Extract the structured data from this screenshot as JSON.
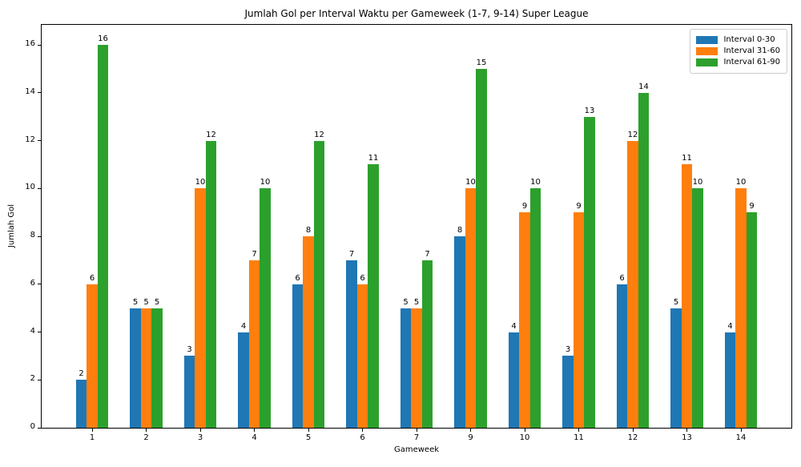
{
  "chart_data": {
    "type": "bar",
    "title": "Jumlah Gol per Interval Waktu per Gameweek (1-7, 9-14) Super League",
    "xlabel": "Gameweek",
    "ylabel": "Jumlah Gol",
    "categories": [
      "1",
      "2",
      "3",
      "4",
      "5",
      "6",
      "7",
      "9",
      "10",
      "11",
      "12",
      "13",
      "14"
    ],
    "series": [
      {
        "name": "Interval 0-30",
        "color": "#1f77b4",
        "values": [
          2,
          5,
          3,
          4,
          6,
          7,
          5,
          8,
          4,
          3,
          6,
          5,
          4
        ]
      },
      {
        "name": "Interval 31-60",
        "color": "#ff7f0e",
        "values": [
          6,
          5,
          10,
          7,
          8,
          6,
          5,
          10,
          9,
          9,
          12,
          11,
          10
        ]
      },
      {
        "name": "Interval 61-90",
        "color": "#2ca02c",
        "values": [
          16,
          5,
          12,
          10,
          12,
          11,
          7,
          15,
          10,
          13,
          14,
          10,
          9
        ]
      }
    ],
    "yticks": [
      0,
      2,
      4,
      6,
      8,
      10,
      12,
      14,
      16
    ],
    "ylim": [
      0,
      16.84
    ],
    "grid": false,
    "legend_position": "upper right",
    "bar_labels": true
  }
}
